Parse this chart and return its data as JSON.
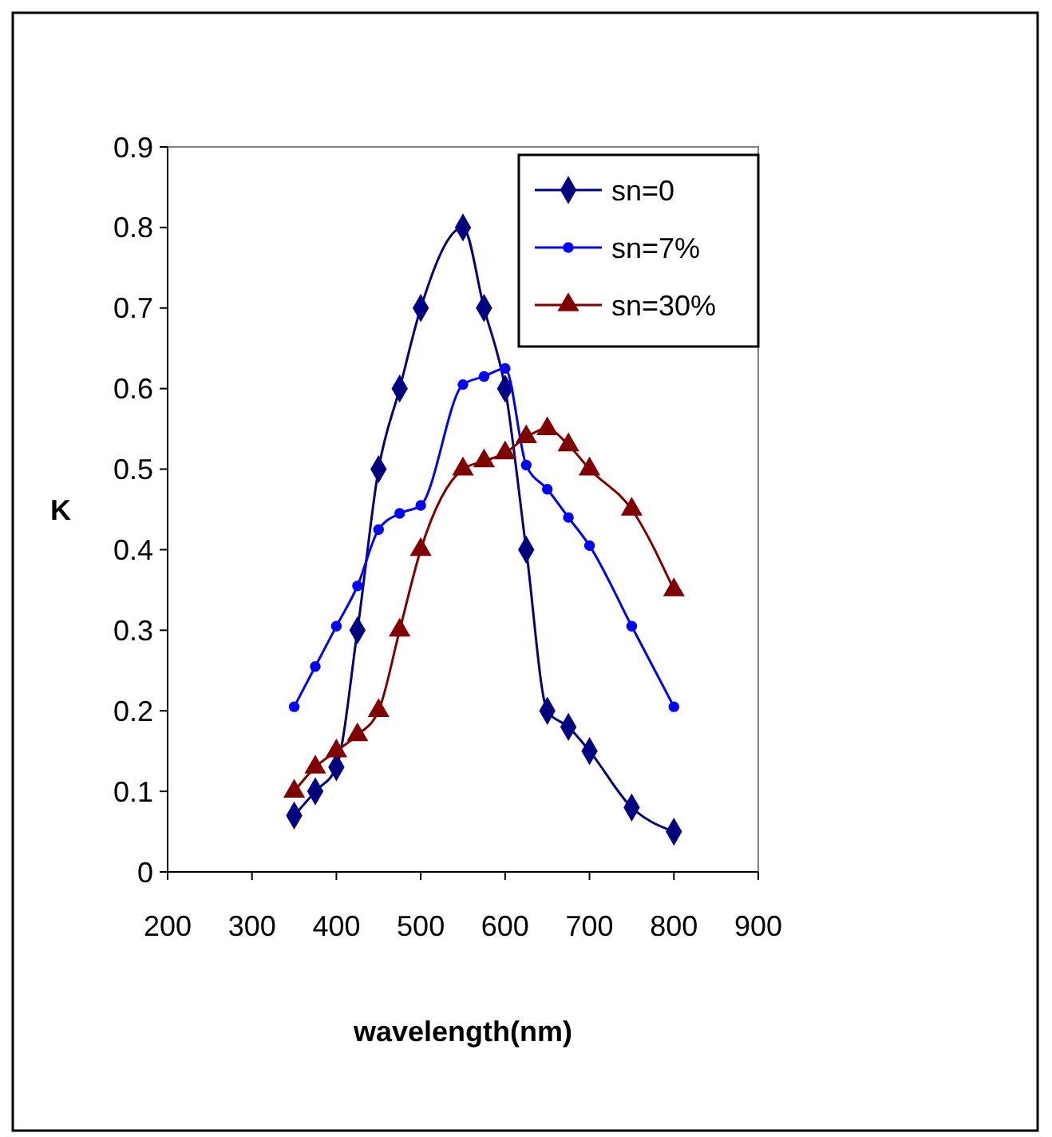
{
  "chart_data": {
    "type": "line",
    "xlabel": "wavelength(nm)",
    "ylabel": "K",
    "xlim": [
      200,
      900
    ],
    "xticks": [
      200,
      300,
      400,
      500,
      600,
      700,
      800,
      900
    ],
    "ylim": [
      0,
      0.9
    ],
    "yticks": [
      0,
      0.1,
      0.2,
      0.3,
      0.4,
      0.5,
      0.6,
      0.7,
      0.8,
      0.9
    ],
    "x": [
      350,
      375,
      400,
      425,
      450,
      475,
      500,
      550,
      575,
      600,
      625,
      650,
      675,
      700,
      750,
      800
    ],
    "legend": "top right",
    "grid": false,
    "series": [
      {
        "name": "sn=0",
        "color": "#000080",
        "marker": "diamond",
        "values": [
          0.07,
          0.1,
          0.13,
          0.3,
          0.5,
          0.6,
          0.7,
          0.8,
          0.7,
          0.6,
          0.4,
          0.2,
          0.18,
          0.15,
          0.08,
          0.05
        ]
      },
      {
        "name": "sn=7%",
        "color": "#0000ff",
        "marker": "circle",
        "values": [
          0.205,
          0.255,
          0.305,
          0.355,
          0.425,
          0.445,
          0.455,
          0.605,
          0.615,
          0.625,
          0.505,
          0.475,
          0.44,
          0.405,
          0.305,
          0.205
        ]
      },
      {
        "name": "sn=30%",
        "color": "#800000",
        "marker": "triangle",
        "values": [
          0.1,
          0.13,
          0.15,
          0.17,
          0.2,
          0.3,
          0.4,
          0.5,
          0.51,
          0.52,
          0.54,
          0.55,
          0.53,
          0.5,
          0.45,
          0.35
        ]
      }
    ]
  }
}
